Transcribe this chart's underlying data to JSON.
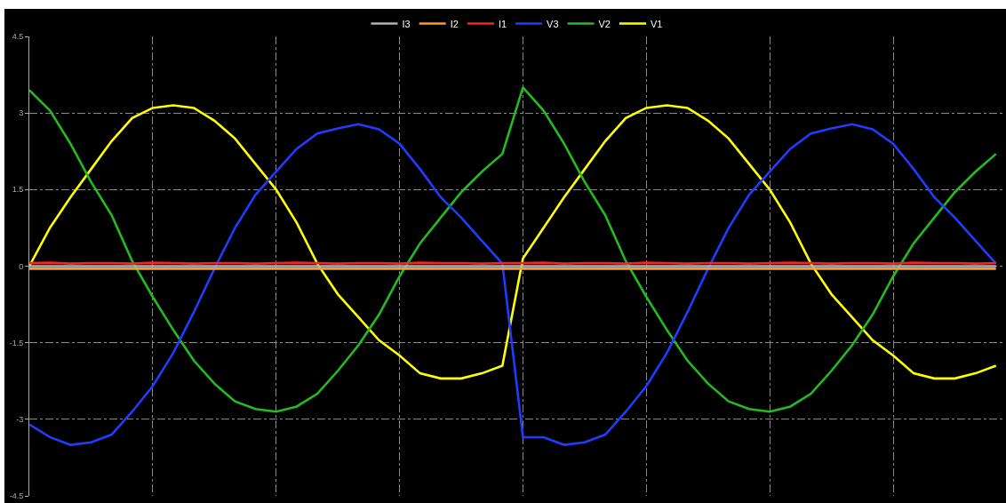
{
  "chart_data": {
    "type": "line",
    "categories": [
      null,
      null,
      null,
      null,
      null,
      null,
      null,
      null,
      null,
      null,
      null,
      null,
      null,
      null,
      null,
      null,
      null,
      null,
      null,
      null,
      null,
      null,
      null,
      null,
      null,
      null,
      null,
      null,
      null,
      null,
      null,
      null,
      null,
      null,
      null,
      null,
      null,
      null,
      null,
      null,
      null,
      null,
      null,
      null,
      null,
      null,
      null,
      null
    ],
    "series": [
      {
        "name": "I3",
        "color": "#b0b0b0",
        "values": [
          0,
          0,
          0,
          0,
          0,
          0,
          0,
          0,
          0,
          0,
          0,
          0,
          0,
          0,
          0,
          0,
          0,
          0,
          0,
          0,
          0,
          0,
          0,
          0,
          0,
          0,
          0,
          0,
          0,
          0,
          0,
          0,
          0,
          0,
          0,
          0,
          0,
          0,
          0,
          0,
          0,
          0,
          0,
          0,
          0,
          0,
          0,
          0
        ]
      },
      {
        "name": "I2",
        "color": "#ff9933",
        "values": [
          -0.05,
          -0.05,
          -0.05,
          -0.05,
          -0.05,
          -0.05,
          -0.05,
          -0.05,
          -0.05,
          -0.05,
          -0.05,
          -0.05,
          -0.05,
          -0.05,
          -0.05,
          -0.05,
          -0.05,
          -0.05,
          -0.05,
          -0.05,
          -0.05,
          -0.05,
          -0.05,
          -0.05,
          -0.05,
          -0.05,
          -0.05,
          -0.05,
          -0.05,
          -0.05,
          -0.05,
          -0.05,
          -0.05,
          -0.05,
          -0.05,
          -0.05,
          -0.05,
          -0.05,
          -0.05,
          -0.05,
          -0.05,
          -0.05,
          -0.05,
          -0.05,
          -0.05,
          -0.05,
          -0.05,
          -0.05
        ]
      },
      {
        "name": "I1",
        "color": "#ff2020",
        "values": [
          0.06,
          0.07,
          0.05,
          0.06,
          0.06,
          0.05,
          0.07,
          0.06,
          0.05,
          0.06,
          0.06,
          0.05,
          0.06,
          0.07,
          0.06,
          0.05,
          0.06,
          0.06,
          0.05,
          0.07,
          0.06,
          0.06,
          0.05,
          0.06,
          0.06,
          0.07,
          0.05,
          0.06,
          0.06,
          0.05,
          0.07,
          0.06,
          0.05,
          0.06,
          0.06,
          0.05,
          0.06,
          0.07,
          0.06,
          0.05,
          0.06,
          0.06,
          0.05,
          0.07,
          0.06,
          0.06,
          0.05,
          0.06
        ]
      },
      {
        "name": "V3",
        "color": "#1f3cff",
        "values": [
          -3.1,
          -3.35,
          -3.5,
          -3.45,
          -3.3,
          -2.85,
          -2.35,
          -1.7,
          -0.9,
          -0.05,
          0.75,
          1.4,
          1.85,
          2.3,
          2.6,
          2.7,
          2.78,
          2.68,
          2.4,
          1.9,
          1.35,
          0.95,
          0.5,
          0.05,
          -3.35,
          -3.35,
          -3.5,
          -3.45,
          -3.3,
          -2.85,
          -2.35,
          -1.7,
          -0.9,
          -0.05,
          0.75,
          1.4,
          1.85,
          2.3,
          2.6,
          2.7,
          2.78,
          2.68,
          2.4,
          1.9,
          1.35,
          0.95,
          0.5,
          0.05
        ]
      },
      {
        "name": "V2",
        "color": "#22bb22",
        "values": [
          3.45,
          3.05,
          2.4,
          1.65,
          1.0,
          0.1,
          -0.6,
          -1.25,
          -1.85,
          -2.3,
          -2.65,
          -2.8,
          -2.85,
          -2.75,
          -2.5,
          -2.05,
          -1.55,
          -0.95,
          -0.2,
          0.45,
          0.95,
          1.45,
          1.85,
          2.2,
          3.5,
          3.05,
          2.4,
          1.65,
          1.0,
          0.1,
          -0.6,
          -1.25,
          -1.85,
          -2.3,
          -2.65,
          -2.8,
          -2.85,
          -2.75,
          -2.5,
          -2.05,
          -1.55,
          -0.95,
          -0.2,
          0.45,
          0.95,
          1.45,
          1.85,
          2.2
        ]
      },
      {
        "name": "V1",
        "color": "#ffff00",
        "values": [
          0,
          0.75,
          1.35,
          1.9,
          2.45,
          2.9,
          3.1,
          3.15,
          3.1,
          2.85,
          2.5,
          2.0,
          1.5,
          0.85,
          0.05,
          -0.55,
          -1.0,
          -1.45,
          -1.75,
          -2.1,
          -2.2,
          -2.2,
          -2.1,
          -1.95,
          0.15,
          0.75,
          1.35,
          1.9,
          2.45,
          2.9,
          3.1,
          3.15,
          3.1,
          2.85,
          2.5,
          2.0,
          1.5,
          0.85,
          0.05,
          -0.55,
          -1.0,
          -1.45,
          -1.75,
          -2.1,
          -2.2,
          -2.2,
          -2.1,
          -1.95
        ]
      }
    ],
    "ylim": [
      -4.5,
      4.5
    ],
    "yticks": [
      -4.5,
      -3,
      -1.5,
      0,
      1.5,
      3,
      4.5
    ],
    "tick_labels": "y",
    "grid": true,
    "legend": "top",
    "marker": "none",
    "line_style": "solid"
  }
}
